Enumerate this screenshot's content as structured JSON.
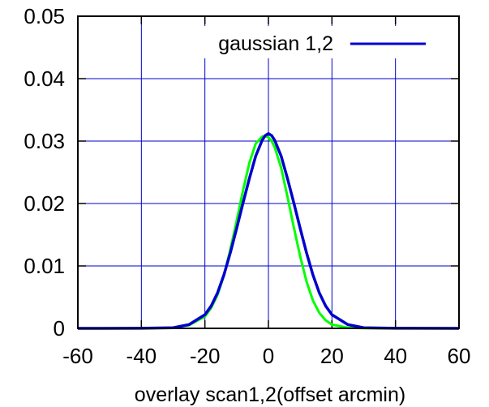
{
  "chart_data": {
    "type": "line",
    "title": "",
    "xlabel": "overlay scan1,2(offset arcmin)",
    "ylabel": "",
    "xlim": [
      -60,
      60
    ],
    "ylim": [
      0,
      0.05
    ],
    "grid": true,
    "legend_placement": "top-right",
    "x_ticks": [
      "-60",
      "-40",
      "-20",
      "0",
      "20",
      "40",
      "60"
    ],
    "y_ticks": [
      "0",
      "0.01",
      "0.02",
      "0.03",
      "0.04",
      "0.05"
    ],
    "series": [
      {
        "name": "",
        "color": "#00ff00",
        "style": "line",
        "x": [
          -60,
          -40,
          -30,
          -25,
          -20,
          -18,
          -16,
          -14,
          -12,
          -10,
          -8,
          -6,
          -4,
          -2,
          -1,
          0,
          1,
          2,
          4,
          6,
          8,
          10,
          12,
          14,
          16,
          18,
          20,
          25,
          30,
          40,
          60
        ],
        "y": [
          0,
          1e-05,
          0.0001,
          0.0005,
          0.0019,
          0.0033,
          0.0054,
          0.0085,
          0.0126,
          0.0172,
          0.0221,
          0.0265,
          0.0296,
          0.0307,
          0.0308,
          0.0306,
          0.03,
          0.029,
          0.0257,
          0.0211,
          0.0162,
          0.0115,
          0.0075,
          0.0045,
          0.0025,
          0.0013,
          0.0006,
          0.0001,
          2e-05,
          0,
          0
        ]
      },
      {
        "name": "gaussian 1,2",
        "color": "#0000cc",
        "style": "line",
        "x": [
          -60,
          -40,
          -30,
          -25,
          -20,
          -18,
          -16,
          -14,
          -12,
          -10,
          -8,
          -6,
          -4,
          -2,
          -1,
          0,
          1,
          2,
          4,
          6,
          8,
          10,
          12,
          14,
          16,
          18,
          20,
          25,
          30,
          40,
          60
        ],
        "y": [
          0,
          1e-05,
          0.0001,
          0.0006,
          0.0022,
          0.0036,
          0.0057,
          0.0086,
          0.0121,
          0.016,
          0.0201,
          0.024,
          0.0276,
          0.0301,
          0.0309,
          0.0312,
          0.0309,
          0.0301,
          0.0276,
          0.024,
          0.0201,
          0.016,
          0.0121,
          0.0086,
          0.0057,
          0.0036,
          0.0022,
          0.0006,
          0.0001,
          1e-05,
          0
        ]
      }
    ]
  }
}
